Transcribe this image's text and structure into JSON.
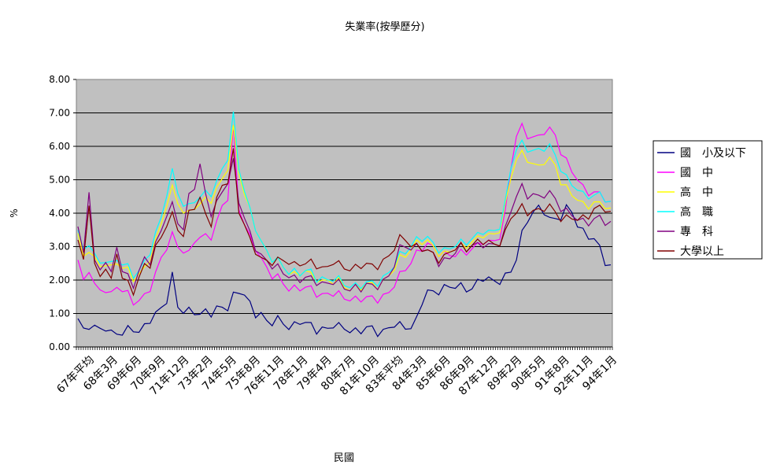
{
  "chart_data": {
    "type": "line",
    "title": "失業率(按學歷分)",
    "xlabel": "民國",
    "ylabel": "%",
    "ylim": [
      0,
      8
    ],
    "y_ticks": [
      "0.00",
      "1.00",
      "2.00",
      "3.00",
      "4.00",
      "5.00",
      "6.00",
      "7.00",
      "8.00"
    ],
    "grid": "horizontal",
    "legend_position": "right",
    "plot_background": "#c0c0c0",
    "x_tick_labels": [
      "67年平均",
      "68年3月",
      "69年6月",
      "70年9月",
      "71年12月",
      "73年2月",
      "74年5月",
      "75年8月",
      "76年11月",
      "78年1月",
      "79年4月",
      "80年7月",
      "81年10月",
      "83年平均",
      "84年3月",
      "85年6月",
      "86年9月",
      "87年12月",
      "89年2月",
      "90年5月",
      "91年8月",
      "92年11月",
      "94年1月"
    ],
    "series": [
      {
        "name": "國　小及以下",
        "color": "#000080",
        "values": [
          0.85,
          0.55,
          0.7,
          0.55,
          0.45,
          0.55,
          0.45,
          0.5,
          0.4,
          0.45,
          0.5,
          0.45,
          0.7,
          0.85,
          0.9,
          1.1,
          1.4,
          2.2,
          1.3,
          1.0,
          1.0,
          1.05,
          1.0,
          1.15,
          1.0,
          1.05,
          1.15,
          1.2,
          1.6,
          1.7,
          1.5,
          1.2,
          1.0,
          1.05,
          0.8,
          0.7,
          0.75,
          0.7,
          0.65,
          0.7,
          0.75,
          0.65,
          0.6,
          0.55,
          0.6,
          0.55,
          0.6,
          0.55,
          0.6,
          0.55,
          0.5,
          0.45,
          0.5,
          0.55,
          0.5,
          0.5,
          0.55,
          0.6,
          0.6,
          0.65,
          0.65,
          0.8,
          1.3,
          1.6,
          1.65,
          1.75,
          1.8,
          1.75,
          1.75,
          1.8,
          1.8,
          1.8,
          1.9,
          2.0,
          2.0,
          2.0,
          2.05,
          2.1,
          2.2,
          2.6,
          3.4,
          3.9,
          4.05,
          4.1,
          4.0,
          3.8,
          3.9,
          3.95,
          4.1,
          4.0,
          3.6,
          3.5,
          3.4,
          3.2,
          2.9,
          2.5,
          2.4
        ]
      },
      {
        "name": "國　中",
        "color": "#ff00ff",
        "values": [
          2.6,
          2.0,
          2.4,
          1.8,
          1.6,
          1.7,
          1.6,
          1.9,
          1.7,
          1.5,
          1.3,
          1.4,
          1.6,
          1.8,
          2.1,
          2.6,
          3.0,
          3.4,
          3.1,
          2.8,
          2.7,
          3.2,
          3.3,
          3.4,
          3.3,
          3.6,
          4.2,
          4.5,
          6.6,
          4.2,
          3.6,
          3.2,
          3.0,
          2.7,
          2.4,
          2.1,
          2.0,
          1.9,
          1.8,
          1.8,
          1.75,
          1.7,
          1.7,
          1.65,
          1.6,
          1.6,
          1.55,
          1.5,
          1.5,
          1.5,
          1.45,
          1.4,
          1.4,
          1.45,
          1.5,
          1.55,
          1.6,
          1.8,
          2.1,
          2.4,
          2.6,
          2.8,
          2.9,
          3.0,
          3.0,
          2.9,
          2.8,
          2.7,
          2.7,
          2.8,
          2.9,
          3.0,
          3.0,
          3.1,
          3.1,
          3.2,
          3.4,
          4.0,
          5.3,
          6.3,
          6.6,
          6.4,
          6.3,
          6.2,
          6.4,
          6.5,
          6.4,
          5.9,
          5.5,
          5.2,
          5.0,
          4.8,
          4.7,
          4.6,
          4.5,
          4.4,
          4.3
        ]
      },
      {
        "name": "高　中",
        "color": "#ffff00",
        "values": [
          3.4,
          2.7,
          3.0,
          2.6,
          2.3,
          2.5,
          2.4,
          2.6,
          2.4,
          2.2,
          2.0,
          2.2,
          2.4,
          2.7,
          3.1,
          3.6,
          4.3,
          4.8,
          4.4,
          4.0,
          3.9,
          4.2,
          4.3,
          4.5,
          4.4,
          4.6,
          5.0,
          5.4,
          6.6,
          5.3,
          4.5,
          4.0,
          3.6,
          3.2,
          2.9,
          2.6,
          2.5,
          2.4,
          2.3,
          2.2,
          2.2,
          2.2,
          2.1,
          2.1,
          2.0,
          2.0,
          1.9,
          1.9,
          1.85,
          1.8,
          1.8,
          1.75,
          1.8,
          1.85,
          1.9,
          2.0,
          2.1,
          2.3,
          2.6,
          2.8,
          3.0,
          3.1,
          3.1,
          3.1,
          3.0,
          2.9,
          2.8,
          2.8,
          2.9,
          3.0,
          3.1,
          3.2,
          3.2,
          3.3,
          3.3,
          3.4,
          3.6,
          4.2,
          5.0,
          5.6,
          5.8,
          5.7,
          5.5,
          5.3,
          5.5,
          5.6,
          5.5,
          5.0,
          4.7,
          4.5,
          4.4,
          4.3,
          4.3,
          4.3,
          4.2,
          4.2,
          4.1
        ]
      },
      {
        "name": "高　職",
        "color": "#00ffff",
        "values": [
          3.5,
          2.9,
          3.2,
          2.7,
          2.4,
          2.6,
          2.5,
          2.7,
          2.5,
          2.3,
          2.1,
          2.3,
          2.6,
          2.9,
          3.3,
          3.8,
          4.6,
          5.3,
          4.7,
          4.2,
          4.1,
          4.4,
          4.5,
          4.7,
          4.6,
          4.8,
          5.3,
          5.7,
          7.0,
          5.4,
          4.6,
          4.0,
          3.6,
          3.2,
          2.9,
          2.6,
          2.5,
          2.4,
          2.3,
          2.3,
          2.2,
          2.2,
          2.2,
          2.1,
          2.1,
          2.0,
          2.0,
          1.95,
          1.9,
          1.9,
          1.85,
          1.8,
          1.85,
          1.9,
          2.0,
          2.1,
          2.2,
          2.4,
          2.7,
          2.9,
          3.1,
          3.2,
          3.2,
          3.2,
          3.1,
          3.0,
          2.9,
          2.9,
          3.0,
          3.1,
          3.2,
          3.3,
          3.3,
          3.4,
          3.4,
          3.5,
          3.7,
          4.3,
          5.3,
          5.9,
          6.1,
          6.0,
          5.9,
          5.8,
          5.9,
          6.0,
          5.8,
          5.4,
          5.0,
          4.8,
          4.7,
          4.6,
          4.6,
          4.5,
          4.5,
          4.4,
          4.3
        ]
      },
      {
        "name": "專　科",
        "color": "#800080",
        "values": [
          3.6,
          2.8,
          4.8,
          2.5,
          2.2,
          2.6,
          2.2,
          3.1,
          2.3,
          2.0,
          1.8,
          2.3,
          2.7,
          2.6,
          3.0,
          3.4,
          4.0,
          4.3,
          3.8,
          3.5,
          4.4,
          4.8,
          5.5,
          4.6,
          4.0,
          4.2,
          4.6,
          5.0,
          5.6,
          4.4,
          3.8,
          3.3,
          3.0,
          2.8,
          2.6,
          2.4,
          2.3,
          2.2,
          2.2,
          2.1,
          2.0,
          2.0,
          2.0,
          2.0,
          1.95,
          1.9,
          1.9,
          1.85,
          1.8,
          1.8,
          1.8,
          1.7,
          1.8,
          1.8,
          1.9,
          2.0,
          2.1,
          2.4,
          2.9,
          3.1,
          3.0,
          3.0,
          2.9,
          2.8,
          2.8,
          2.6,
          2.6,
          2.6,
          2.8,
          3.0,
          3.0,
          3.1,
          3.0,
          3.0,
          3.0,
          3.1,
          3.2,
          3.5,
          4.0,
          4.5,
          4.8,
          4.6,
          4.6,
          4.4,
          4.5,
          4.6,
          4.5,
          4.2,
          4.0,
          3.9,
          3.8,
          3.8,
          3.8,
          3.8,
          3.8,
          3.7,
          3.7
        ]
      },
      {
        "name": "大學以上",
        "color": "#800000",
        "values": [
          3.2,
          2.6,
          4.4,
          2.4,
          2.0,
          2.4,
          2.0,
          2.9,
          2.1,
          1.8,
          1.6,
          2.1,
          2.5,
          2.5,
          2.9,
          3.2,
          3.7,
          4.0,
          3.6,
          3.3,
          3.9,
          4.2,
          4.5,
          4.0,
          3.7,
          4.3,
          4.8,
          5.0,
          5.9,
          4.1,
          3.6,
          3.1,
          2.9,
          2.7,
          2.6,
          2.5,
          2.5,
          2.6,
          2.6,
          2.5,
          2.5,
          2.4,
          2.5,
          2.5,
          2.4,
          2.4,
          2.5,
          2.4,
          2.4,
          2.4,
          2.4,
          2.4,
          2.4,
          2.4,
          2.5,
          2.6,
          2.7,
          2.9,
          3.2,
          3.3,
          3.1,
          3.0,
          2.9,
          2.8,
          2.8,
          2.7,
          2.7,
          2.8,
          2.9,
          3.0,
          3.0,
          3.1,
          3.1,
          3.1,
          3.1,
          3.1,
          3.2,
          3.4,
          3.8,
          4.0,
          4.2,
          4.1,
          4.1,
          4.0,
          4.1,
          4.2,
          4.1,
          3.9,
          3.8,
          3.8,
          3.8,
          3.9,
          4.0,
          4.1,
          4.1,
          4.1,
          4.0
        ]
      }
    ]
  }
}
